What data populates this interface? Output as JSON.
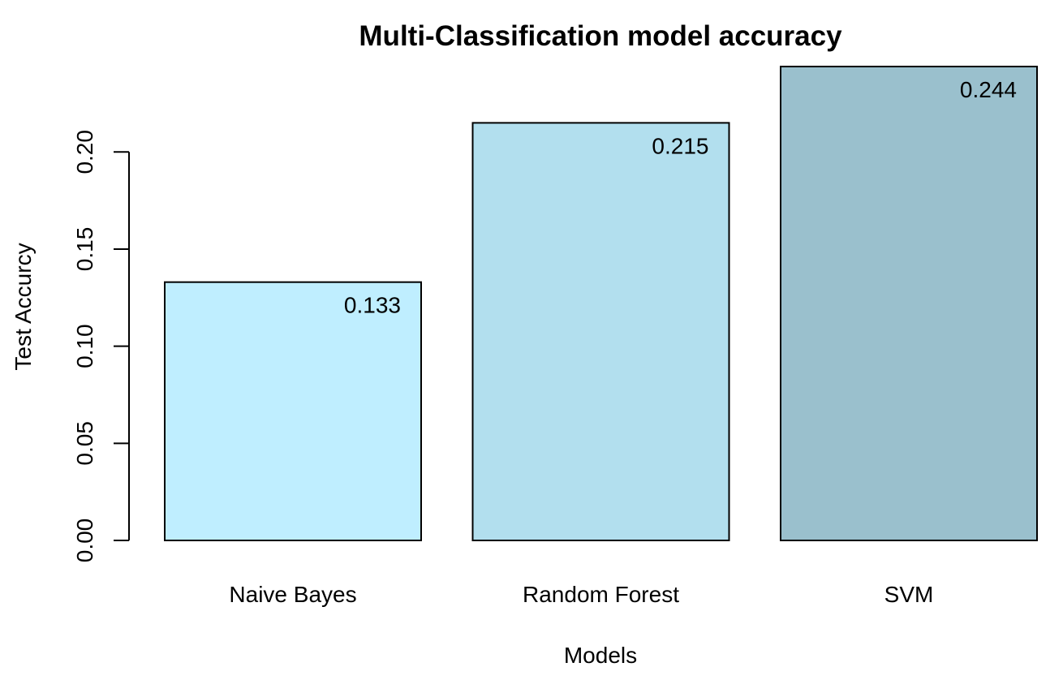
{
  "chart_data": {
    "type": "bar",
    "title": "Multi-Classification model accuracy",
    "xlabel": "Models",
    "ylabel": "Test Accurcy",
    "categories": [
      "Naive Bayes",
      "Random Forest",
      "SVM"
    ],
    "values": [
      0.133,
      0.215,
      0.244
    ],
    "data_labels": [
      "0.133",
      "0.215",
      "0.244"
    ],
    "colors": [
      "#BFEEFF",
      "#B2DFEE",
      "#9AC0CD"
    ],
    "ylim": [
      0,
      0.244
    ],
    "yticks": [
      0,
      0.05,
      0.1,
      0.15,
      0.2
    ],
    "ytick_labels": [
      "0.00",
      "0.05",
      "0.10",
      "0.15",
      "0.20"
    ],
    "grid": false,
    "legend": "none"
  }
}
